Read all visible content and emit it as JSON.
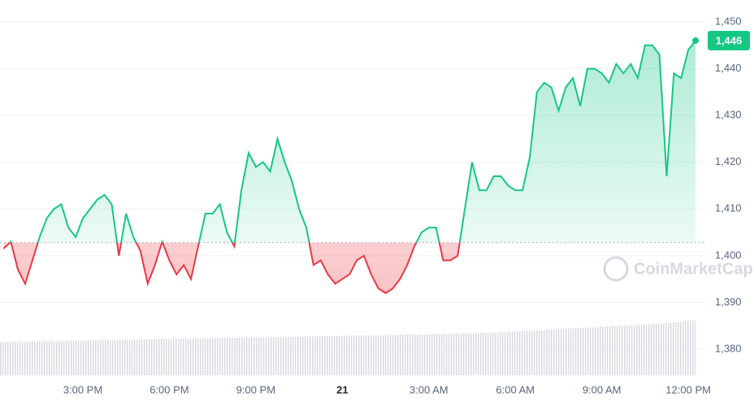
{
  "chart_data": {
    "type": "line",
    "values": [
      1401.5,
      1403,
      1397,
      1394,
      1399,
      1404,
      1408,
      1410,
      1411,
      1406,
      1404,
      1408,
      1410,
      1412,
      1413,
      1411,
      1400,
      1409,
      1404,
      1401,
      1394,
      1398,
      1403,
      1399,
      1396,
      1398,
      1395,
      1402,
      1409,
      1409,
      1411,
      1405,
      1402,
      1414,
      1422,
      1419,
      1420,
      1418,
      1425,
      1420,
      1416,
      1410,
      1406,
      1398,
      1399,
      1396,
      1394,
      1395,
      1396,
      1399,
      1400,
      1396,
      1393,
      1392,
      1393,
      1395,
      1398,
      1402,
      1405,
      1406,
      1406,
      1399,
      1399,
      1400,
      1410,
      1420,
      1414,
      1414,
      1417,
      1417,
      1415,
      1414,
      1414,
      1421,
      1435,
      1437,
      1436,
      1431,
      1436,
      1438,
      1432,
      1440,
      1440,
      1439,
      1437,
      1441,
      1439,
      1441,
      1438,
      1445,
      1445,
      1443,
      1417,
      1439,
      1438,
      1444,
      1446
    ],
    "xlim": [
      0,
      96
    ],
    "xticks": [
      {
        "value": 11,
        "label": "3:00 PM"
      },
      {
        "value": 23,
        "label": "6:00 PM"
      },
      {
        "value": 35,
        "label": "9:00 PM"
      },
      {
        "value": 47,
        "label": "21"
      },
      {
        "value": 59,
        "label": "3:00 AM"
      },
      {
        "value": 71,
        "label": "6:00 AM"
      },
      {
        "value": 83,
        "label": "9:00 AM"
      },
      {
        "value": 95,
        "label": "12:00 PM"
      }
    ],
    "ylim": [
      1380,
      1450
    ],
    "yticks": [
      {
        "value": 1380,
        "label": "1,380"
      },
      {
        "value": 1390,
        "label": "1,390"
      },
      {
        "value": 1400,
        "label": "1,400"
      },
      {
        "value": 1410,
        "label": "1,410"
      },
      {
        "value": 1420,
        "label": "1,420"
      },
      {
        "value": 1430,
        "label": "1,430"
      },
      {
        "value": 1440,
        "label": "1,440"
      },
      {
        "value": 1450,
        "label": "1,450"
      }
    ],
    "reference_line": 1402.8,
    "last_price": {
      "value": 1446,
      "label": "1,446"
    },
    "up_color": "#16c784",
    "down_color": "#ea3943",
    "grid": true,
    "watermark": "CoinMarketCap"
  }
}
